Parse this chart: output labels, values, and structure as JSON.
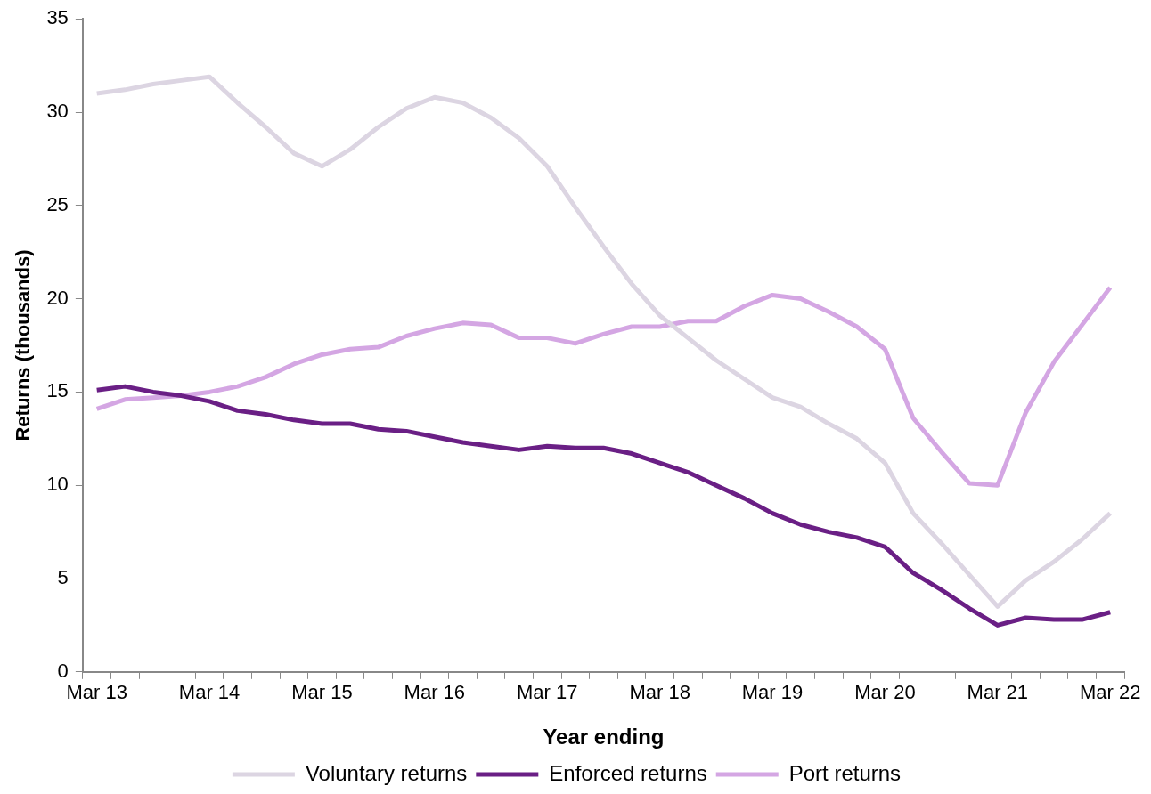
{
  "chart_data": {
    "type": "line",
    "xlabel": "Year ending",
    "ylabel": "Returns (thousands)",
    "categories": [
      "Mar 13",
      null,
      null,
      null,
      "Mar 14",
      null,
      null,
      null,
      "Mar 15",
      null,
      null,
      null,
      "Mar 16",
      null,
      null,
      null,
      "Mar 17",
      null,
      null,
      null,
      "Mar 18",
      null,
      null,
      null,
      "Mar 19",
      null,
      null,
      null,
      "Mar 20",
      null,
      null,
      null,
      "Mar 21",
      null,
      null,
      null,
      "Mar 22"
    ],
    "series": [
      {
        "name": "Voluntary returns",
        "color": "#dcd5e2",
        "values": [
          31.0,
          31.2,
          31.5,
          31.7,
          31.9,
          30.5,
          29.2,
          27.8,
          27.1,
          28.0,
          29.2,
          30.2,
          30.8,
          30.5,
          29.7,
          28.6,
          27.1,
          24.9,
          22.8,
          20.8,
          19.1,
          17.9,
          16.7,
          15.7,
          14.7,
          14.2,
          13.3,
          12.5,
          11.2,
          8.5,
          6.9,
          5.2,
          3.5,
          4.9,
          5.9,
          7.1,
          8.5
        ]
      },
      {
        "name": "Enforced returns",
        "color": "#6a1f85",
        "values": [
          15.1,
          15.3,
          15.0,
          14.8,
          14.5,
          14.0,
          13.8,
          13.5,
          13.3,
          13.3,
          13.0,
          12.9,
          12.6,
          12.3,
          12.1,
          11.9,
          12.1,
          12.0,
          12.0,
          11.7,
          11.2,
          10.7,
          10.0,
          9.3,
          8.5,
          7.9,
          7.5,
          7.2,
          6.7,
          5.3,
          4.4,
          3.4,
          2.5,
          2.9,
          2.8,
          2.8,
          3.2
        ]
      },
      {
        "name": "Port returns",
        "color": "#d4a6e3",
        "values": [
          14.1,
          14.6,
          14.7,
          14.8,
          15.0,
          15.3,
          15.8,
          16.5,
          17.0,
          17.3,
          17.4,
          18.0,
          18.4,
          18.7,
          18.6,
          17.9,
          17.9,
          17.6,
          18.1,
          18.5,
          18.5,
          18.8,
          18.8,
          19.6,
          20.2,
          20.0,
          19.3,
          18.5,
          17.3,
          13.6,
          11.8,
          10.1,
          10.0,
          13.9,
          16.6,
          18.6,
          20.6
        ]
      }
    ],
    "ylim": [
      0,
      35
    ],
    "yticks": [
      0,
      5,
      10,
      15,
      20,
      25,
      30,
      35
    ],
    "legend": "bottom",
    "grid": false,
    "marker": "none",
    "line_style": "solid"
  }
}
